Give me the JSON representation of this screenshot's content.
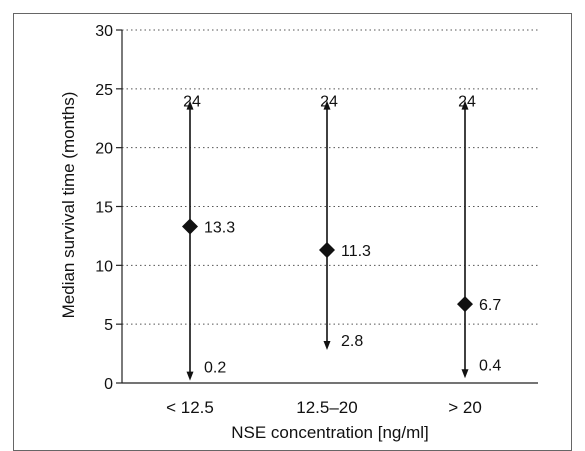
{
  "chart_data": {
    "type": "range",
    "xlabel": "NSE concentration [ng/ml]",
    "ylabel": "Median survival time (months)",
    "ylim": [
      0,
      30
    ],
    "yticks": [
      0,
      5,
      10,
      15,
      20,
      25,
      30
    ],
    "grid": "horizontal-dotted",
    "categories": [
      "< 12.5",
      "12.5–20",
      "> 20"
    ],
    "series": [
      {
        "median": [
          13.3,
          11.3,
          6.7
        ],
        "max": [
          24,
          24,
          24
        ],
        "min": [
          0.2,
          2.8,
          0.4
        ]
      }
    ],
    "labels": {
      "median": [
        "13.3",
        "11.3",
        "6.7"
      ],
      "max": [
        "24",
        "24",
        "24"
      ],
      "min": [
        "0.2",
        "2.8",
        "0.4"
      ]
    },
    "colors": {
      "marks": "#111111",
      "grid": "#555555",
      "frame": "#666666"
    }
  }
}
